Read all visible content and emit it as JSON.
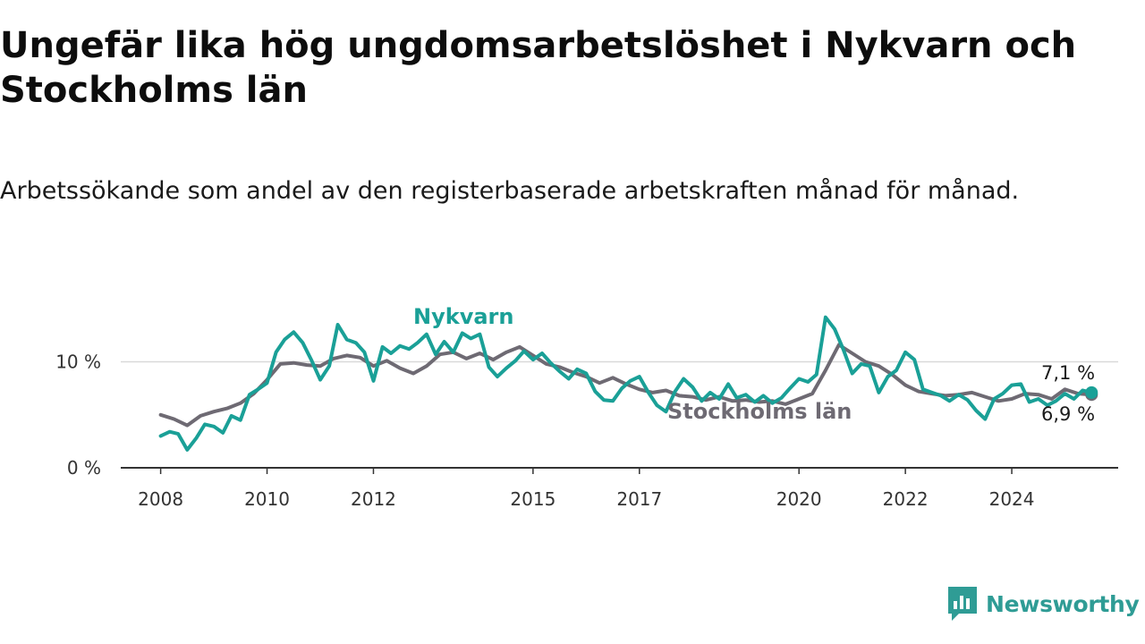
{
  "title": "Ungefär lika hög ungdomsarbetslöshet i Nykvarn och Stockholms län",
  "subtitle": "Arbetssökande som andel av den registerbaserade arbetskraften månad för månad.",
  "brand": {
    "name": "Newsworthy",
    "color": "#2f9c95"
  },
  "chart_data": {
    "type": "line",
    "x_unit": "year",
    "ylim": [
      0,
      15
    ],
    "y_ticks": [
      0,
      10
    ],
    "y_tick_labels": [
      "0 %",
      "10 %"
    ],
    "x_ticks": [
      2008,
      2010,
      2012,
      2015,
      2017,
      2020,
      2022,
      2024
    ],
    "x_tick_labels": [
      "2008",
      "2010",
      "2012",
      "2015",
      "2017",
      "2020",
      "2022",
      "2024"
    ],
    "grid": "horizontal at 10 %",
    "series": [
      {
        "name": "Stockholms län",
        "color": "#6e6a73",
        "end_label": "6,9 %",
        "points": [
          [
            2008.0,
            5.0
          ],
          [
            2008.25,
            4.6
          ],
          [
            2008.5,
            4.0
          ],
          [
            2008.75,
            4.9
          ],
          [
            2009.0,
            5.3
          ],
          [
            2009.25,
            5.6
          ],
          [
            2009.5,
            6.1
          ],
          [
            2009.75,
            7.0
          ],
          [
            2010.0,
            8.3
          ],
          [
            2010.25,
            9.8
          ],
          [
            2010.5,
            9.9
          ],
          [
            2010.75,
            9.7
          ],
          [
            2011.0,
            9.6
          ],
          [
            2011.25,
            10.3
          ],
          [
            2011.5,
            10.6
          ],
          [
            2011.75,
            10.4
          ],
          [
            2012.0,
            9.6
          ],
          [
            2012.25,
            10.1
          ],
          [
            2012.5,
            9.4
          ],
          [
            2012.75,
            8.9
          ],
          [
            2013.0,
            9.6
          ],
          [
            2013.25,
            10.7
          ],
          [
            2013.5,
            10.9
          ],
          [
            2013.75,
            10.3
          ],
          [
            2014.0,
            10.8
          ],
          [
            2014.25,
            10.2
          ],
          [
            2014.5,
            10.9
          ],
          [
            2014.75,
            11.4
          ],
          [
            2015.0,
            10.6
          ],
          [
            2015.25,
            9.8
          ],
          [
            2015.5,
            9.5
          ],
          [
            2015.75,
            9.0
          ],
          [
            2016.0,
            8.6
          ],
          [
            2016.25,
            8.0
          ],
          [
            2016.5,
            8.5
          ],
          [
            2016.75,
            7.9
          ],
          [
            2017.0,
            7.4
          ],
          [
            2017.25,
            7.1
          ],
          [
            2017.5,
            7.3
          ],
          [
            2017.75,
            6.8
          ],
          [
            2018.0,
            6.7
          ],
          [
            2018.25,
            6.4
          ],
          [
            2018.5,
            6.7
          ],
          [
            2018.75,
            6.3
          ],
          [
            2019.0,
            6.4
          ],
          [
            2019.25,
            6.2
          ],
          [
            2019.5,
            6.3
          ],
          [
            2019.75,
            6.0
          ],
          [
            2020.0,
            6.5
          ],
          [
            2020.25,
            7.0
          ],
          [
            2020.5,
            9.2
          ],
          [
            2020.75,
            11.6
          ],
          [
            2021.0,
            10.8
          ],
          [
            2021.25,
            10.0
          ],
          [
            2021.5,
            9.6
          ],
          [
            2021.75,
            8.8
          ],
          [
            2022.0,
            7.8
          ],
          [
            2022.25,
            7.2
          ],
          [
            2022.5,
            7.0
          ],
          [
            2022.75,
            6.8
          ],
          [
            2023.0,
            6.9
          ],
          [
            2023.25,
            7.1
          ],
          [
            2023.5,
            6.7
          ],
          [
            2023.75,
            6.3
          ],
          [
            2024.0,
            6.5
          ],
          [
            2024.25,
            7.0
          ],
          [
            2024.5,
            6.9
          ],
          [
            2024.75,
            6.5
          ],
          [
            2025.0,
            7.4
          ],
          [
            2025.25,
            7.0
          ],
          [
            2025.5,
            6.9
          ]
        ]
      },
      {
        "name": "Nykvarn",
        "color": "#1aa097",
        "end_label": "7,1 %",
        "points": [
          [
            2008.0,
            3.0
          ],
          [
            2008.17,
            3.4
          ],
          [
            2008.33,
            3.2
          ],
          [
            2008.5,
            1.7
          ],
          [
            2008.67,
            2.8
          ],
          [
            2008.83,
            4.1
          ],
          [
            2009.0,
            3.9
          ],
          [
            2009.17,
            3.3
          ],
          [
            2009.33,
            4.9
          ],
          [
            2009.5,
            4.5
          ],
          [
            2009.67,
            6.9
          ],
          [
            2009.83,
            7.4
          ],
          [
            2010.0,
            8.0
          ],
          [
            2010.17,
            10.9
          ],
          [
            2010.33,
            12.1
          ],
          [
            2010.5,
            12.8
          ],
          [
            2010.67,
            11.8
          ],
          [
            2010.83,
            10.2
          ],
          [
            2011.0,
            8.3
          ],
          [
            2011.17,
            9.6
          ],
          [
            2011.33,
            13.5
          ],
          [
            2011.5,
            12.1
          ],
          [
            2011.67,
            11.8
          ],
          [
            2011.83,
            10.9
          ],
          [
            2012.0,
            8.2
          ],
          [
            2012.17,
            11.4
          ],
          [
            2012.33,
            10.8
          ],
          [
            2012.5,
            11.5
          ],
          [
            2012.67,
            11.2
          ],
          [
            2012.83,
            11.8
          ],
          [
            2013.0,
            12.6
          ],
          [
            2013.17,
            10.7
          ],
          [
            2013.33,
            11.9
          ],
          [
            2013.5,
            10.9
          ],
          [
            2013.67,
            12.7
          ],
          [
            2013.83,
            12.2
          ],
          [
            2014.0,
            12.6
          ],
          [
            2014.17,
            9.5
          ],
          [
            2014.33,
            8.6
          ],
          [
            2014.5,
            9.4
          ],
          [
            2014.67,
            10.1
          ],
          [
            2014.83,
            11.0
          ],
          [
            2015.0,
            10.2
          ],
          [
            2015.17,
            10.8
          ],
          [
            2015.33,
            9.9
          ],
          [
            2015.5,
            9.1
          ],
          [
            2015.67,
            8.4
          ],
          [
            2015.83,
            9.3
          ],
          [
            2016.0,
            8.9
          ],
          [
            2016.17,
            7.2
          ],
          [
            2016.33,
            6.4
          ],
          [
            2016.5,
            6.3
          ],
          [
            2016.67,
            7.5
          ],
          [
            2016.83,
            8.2
          ],
          [
            2017.0,
            8.6
          ],
          [
            2017.17,
            7.1
          ],
          [
            2017.33,
            5.9
          ],
          [
            2017.5,
            5.3
          ],
          [
            2017.67,
            7.2
          ],
          [
            2017.83,
            8.4
          ],
          [
            2018.0,
            7.6
          ],
          [
            2018.17,
            6.3
          ],
          [
            2018.33,
            7.1
          ],
          [
            2018.5,
            6.5
          ],
          [
            2018.67,
            7.9
          ],
          [
            2018.83,
            6.6
          ],
          [
            2019.0,
            6.9
          ],
          [
            2019.17,
            6.2
          ],
          [
            2019.33,
            6.8
          ],
          [
            2019.5,
            6.1
          ],
          [
            2019.67,
            6.6
          ],
          [
            2019.83,
            7.5
          ],
          [
            2020.0,
            8.4
          ],
          [
            2020.17,
            8.1
          ],
          [
            2020.33,
            8.8
          ],
          [
            2020.5,
            14.2
          ],
          [
            2020.67,
            13.1
          ],
          [
            2020.83,
            11.2
          ],
          [
            2021.0,
            8.9
          ],
          [
            2021.17,
            9.8
          ],
          [
            2021.33,
            9.6
          ],
          [
            2021.5,
            7.1
          ],
          [
            2021.67,
            8.6
          ],
          [
            2021.83,
            9.2
          ],
          [
            2022.0,
            10.9
          ],
          [
            2022.17,
            10.2
          ],
          [
            2022.33,
            7.4
          ],
          [
            2022.5,
            7.1
          ],
          [
            2022.67,
            6.8
          ],
          [
            2022.83,
            6.3
          ],
          [
            2023.0,
            6.9
          ],
          [
            2023.17,
            6.4
          ],
          [
            2023.33,
            5.4
          ],
          [
            2023.5,
            4.6
          ],
          [
            2023.67,
            6.5
          ],
          [
            2023.83,
            7.0
          ],
          [
            2024.0,
            7.8
          ],
          [
            2024.17,
            7.9
          ],
          [
            2024.33,
            6.2
          ],
          [
            2024.5,
            6.5
          ],
          [
            2024.67,
            5.9
          ],
          [
            2024.83,
            6.3
          ],
          [
            2025.0,
            7.0
          ],
          [
            2025.17,
            6.5
          ],
          [
            2025.33,
            7.3
          ],
          [
            2025.5,
            7.1
          ]
        ]
      }
    ]
  }
}
